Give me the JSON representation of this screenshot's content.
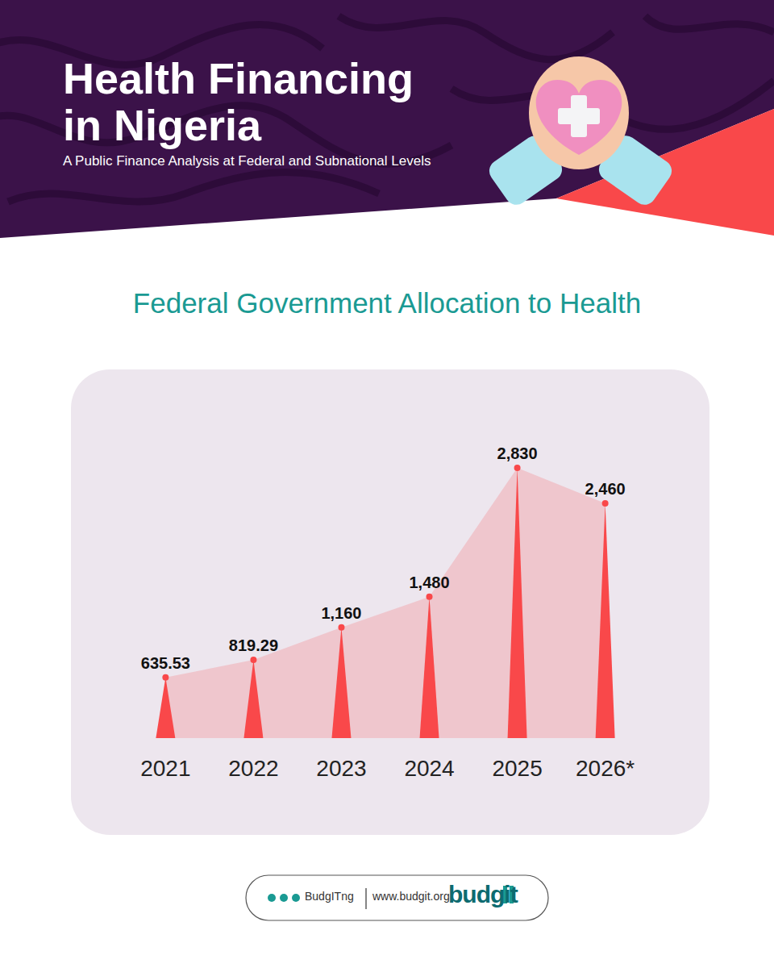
{
  "header": {
    "title": [
      "Health Financing",
      "in Nigeria"
    ],
    "subtitle": "A Public Finance Analysis at Federal and Subnational Levels"
  },
  "chart_data": {
    "type": "area",
    "title": "Federal Government Allocation to Health",
    "categories": [
      "2021",
      "2022",
      "2023",
      "2024",
      "2025",
      "2026*"
    ],
    "values": [
      635.53,
      819.29,
      1160,
      1480,
      2830,
      2460
    ],
    "value_labels": [
      "635.53",
      "819.29",
      "1,160",
      "1,480",
      "2,830",
      "2,460"
    ],
    "color": "#f9484a",
    "data_labels": true,
    "tick_labels": "x",
    "ylim": [
      0,
      3000
    ]
  },
  "footer": {
    "handle": "BudgITng",
    "website": "www.budgit.org",
    "logo": "budgit"
  }
}
